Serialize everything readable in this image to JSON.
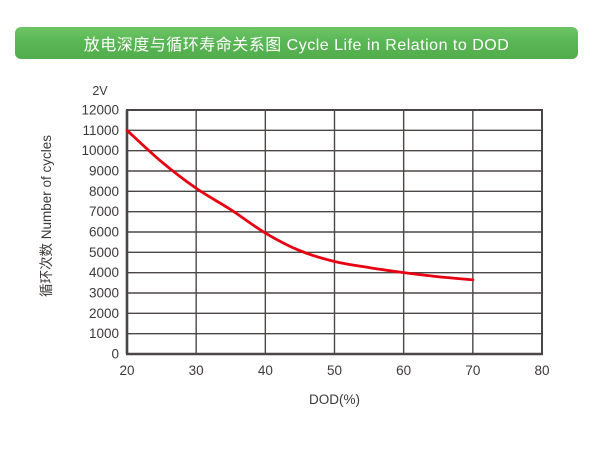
{
  "banner": {
    "title": "放电深度与循环寿命关系图 Cycle Life in Relation to DOD",
    "background": "#5ab755",
    "text_color": "#ffffff"
  },
  "chart_data": {
    "type": "line",
    "title": "放电深度与循环寿命关系图 Cycle Life in Relation to DOD",
    "series_label": "2V",
    "xlabel": "DOD(%)",
    "ylabel": "循环次数 Number of cycles",
    "x": [
      20,
      25,
      30,
      35,
      40,
      45,
      50,
      55,
      60,
      65,
      70
    ],
    "y": [
      11000,
      9450,
      8150,
      7100,
      5950,
      5080,
      4550,
      4250,
      4000,
      3800,
      3650
    ],
    "xlim": [
      20,
      80
    ],
    "ylim": [
      0,
      12000
    ],
    "x_ticks": [
      20,
      30,
      40,
      50,
      60,
      70,
      80
    ],
    "y_ticks": [
      0,
      1000,
      2000,
      3000,
      4000,
      5000,
      6000,
      7000,
      8000,
      9000,
      10000,
      11000,
      12000
    ],
    "grid": true,
    "legend_position": "none",
    "line_color": "#e60012",
    "grid_color": "#4a4645",
    "tick_text_color": "#3d3a39"
  }
}
